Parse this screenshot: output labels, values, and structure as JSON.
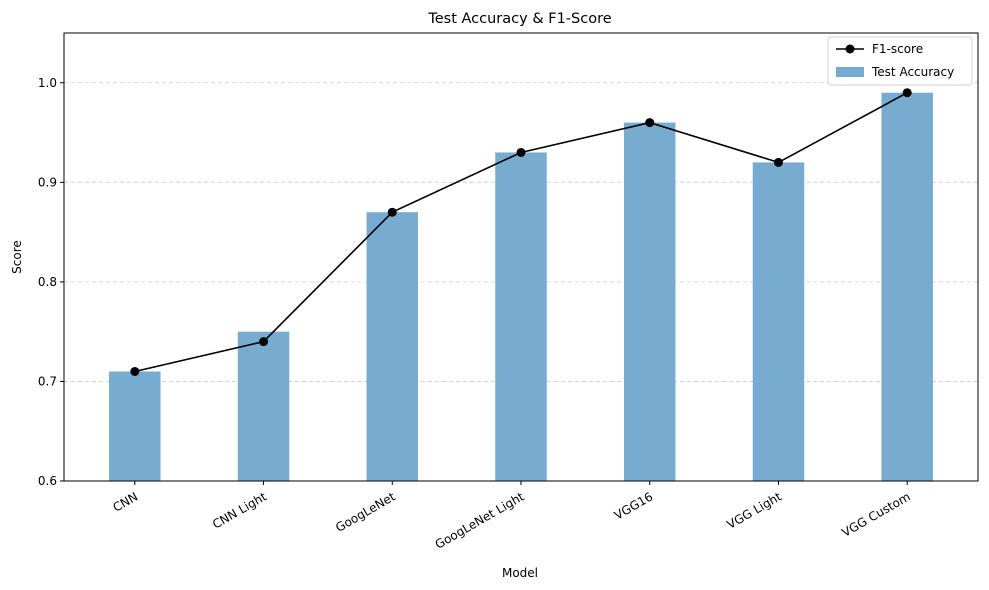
{
  "chart_data": {
    "type": "bar",
    "title": "Test Accuracy & F1-Score",
    "xlabel": "Model",
    "ylabel": "Score",
    "ylim": [
      0.6,
      1.05
    ],
    "yticks": [
      0.6,
      0.7,
      0.8,
      0.9,
      1.0
    ],
    "ytick_labels": [
      "0.6",
      "0.7",
      "0.8",
      "0.9",
      "1.0"
    ],
    "grid": "y-dashed",
    "legend": "top-right",
    "categories": [
      "CNN",
      "CNN Light",
      "GoogLeNet",
      "GoogLeNet Light",
      "VGG16",
      "VGG Light",
      "VGG Custom"
    ],
    "series": [
      {
        "name": "F1-score",
        "type": "line",
        "color": "#000000",
        "values": [
          0.71,
          0.74,
          0.87,
          0.93,
          0.96,
          0.92,
          0.99
        ]
      },
      {
        "name": "Test Accuracy",
        "type": "bar",
        "color": "#77acd0",
        "values": [
          0.71,
          0.75,
          0.87,
          0.93,
          0.96,
          0.92,
          0.99
        ]
      }
    ]
  }
}
